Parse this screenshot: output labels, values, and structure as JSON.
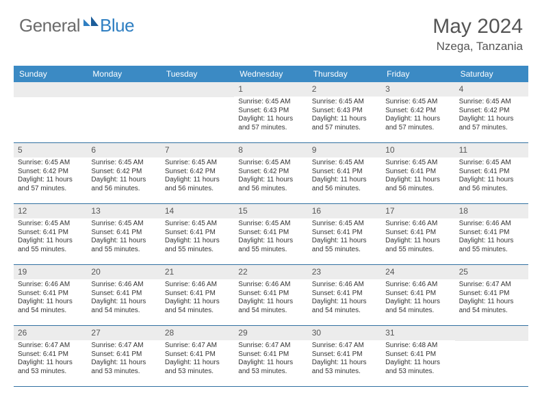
{
  "brand": {
    "text1": "General",
    "text2": "Blue"
  },
  "title": "May 2024",
  "location": "Nzega, Tanzania",
  "colors": {
    "header_bg": "#3b8ac4",
    "header_text": "#ffffff",
    "daynum_bg": "#ececec",
    "week_border": "#2f6fa0",
    "logo_gray": "#6b6b6b",
    "logo_blue": "#2f7fc2"
  },
  "dow": [
    "Sunday",
    "Monday",
    "Tuesday",
    "Wednesday",
    "Thursday",
    "Friday",
    "Saturday"
  ],
  "weeks": [
    [
      null,
      null,
      null,
      {
        "d": "1",
        "sr": "6:45 AM",
        "ss": "6:43 PM",
        "dl": "11 hours and 57 minutes."
      },
      {
        "d": "2",
        "sr": "6:45 AM",
        "ss": "6:43 PM",
        "dl": "11 hours and 57 minutes."
      },
      {
        "d": "3",
        "sr": "6:45 AM",
        "ss": "6:42 PM",
        "dl": "11 hours and 57 minutes."
      },
      {
        "d": "4",
        "sr": "6:45 AM",
        "ss": "6:42 PM",
        "dl": "11 hours and 57 minutes."
      }
    ],
    [
      {
        "d": "5",
        "sr": "6:45 AM",
        "ss": "6:42 PM",
        "dl": "11 hours and 57 minutes."
      },
      {
        "d": "6",
        "sr": "6:45 AM",
        "ss": "6:42 PM",
        "dl": "11 hours and 56 minutes."
      },
      {
        "d": "7",
        "sr": "6:45 AM",
        "ss": "6:42 PM",
        "dl": "11 hours and 56 minutes."
      },
      {
        "d": "8",
        "sr": "6:45 AM",
        "ss": "6:42 PM",
        "dl": "11 hours and 56 minutes."
      },
      {
        "d": "9",
        "sr": "6:45 AM",
        "ss": "6:41 PM",
        "dl": "11 hours and 56 minutes."
      },
      {
        "d": "10",
        "sr": "6:45 AM",
        "ss": "6:41 PM",
        "dl": "11 hours and 56 minutes."
      },
      {
        "d": "11",
        "sr": "6:45 AM",
        "ss": "6:41 PM",
        "dl": "11 hours and 56 minutes."
      }
    ],
    [
      {
        "d": "12",
        "sr": "6:45 AM",
        "ss": "6:41 PM",
        "dl": "11 hours and 55 minutes."
      },
      {
        "d": "13",
        "sr": "6:45 AM",
        "ss": "6:41 PM",
        "dl": "11 hours and 55 minutes."
      },
      {
        "d": "14",
        "sr": "6:45 AM",
        "ss": "6:41 PM",
        "dl": "11 hours and 55 minutes."
      },
      {
        "d": "15",
        "sr": "6:45 AM",
        "ss": "6:41 PM",
        "dl": "11 hours and 55 minutes."
      },
      {
        "d": "16",
        "sr": "6:45 AM",
        "ss": "6:41 PM",
        "dl": "11 hours and 55 minutes."
      },
      {
        "d": "17",
        "sr": "6:46 AM",
        "ss": "6:41 PM",
        "dl": "11 hours and 55 minutes."
      },
      {
        "d": "18",
        "sr": "6:46 AM",
        "ss": "6:41 PM",
        "dl": "11 hours and 55 minutes."
      }
    ],
    [
      {
        "d": "19",
        "sr": "6:46 AM",
        "ss": "6:41 PM",
        "dl": "11 hours and 54 minutes."
      },
      {
        "d": "20",
        "sr": "6:46 AM",
        "ss": "6:41 PM",
        "dl": "11 hours and 54 minutes."
      },
      {
        "d": "21",
        "sr": "6:46 AM",
        "ss": "6:41 PM",
        "dl": "11 hours and 54 minutes."
      },
      {
        "d": "22",
        "sr": "6:46 AM",
        "ss": "6:41 PM",
        "dl": "11 hours and 54 minutes."
      },
      {
        "d": "23",
        "sr": "6:46 AM",
        "ss": "6:41 PM",
        "dl": "11 hours and 54 minutes."
      },
      {
        "d": "24",
        "sr": "6:46 AM",
        "ss": "6:41 PM",
        "dl": "11 hours and 54 minutes."
      },
      {
        "d": "25",
        "sr": "6:47 AM",
        "ss": "6:41 PM",
        "dl": "11 hours and 54 minutes."
      }
    ],
    [
      {
        "d": "26",
        "sr": "6:47 AM",
        "ss": "6:41 PM",
        "dl": "11 hours and 53 minutes."
      },
      {
        "d": "27",
        "sr": "6:47 AM",
        "ss": "6:41 PM",
        "dl": "11 hours and 53 minutes."
      },
      {
        "d": "28",
        "sr": "6:47 AM",
        "ss": "6:41 PM",
        "dl": "11 hours and 53 minutes."
      },
      {
        "d": "29",
        "sr": "6:47 AM",
        "ss": "6:41 PM",
        "dl": "11 hours and 53 minutes."
      },
      {
        "d": "30",
        "sr": "6:47 AM",
        "ss": "6:41 PM",
        "dl": "11 hours and 53 minutes."
      },
      {
        "d": "31",
        "sr": "6:48 AM",
        "ss": "6:41 PM",
        "dl": "11 hours and 53 minutes."
      },
      null
    ]
  ],
  "labels": {
    "sunrise": "Sunrise:",
    "sunset": "Sunset:",
    "daylight": "Daylight:"
  }
}
